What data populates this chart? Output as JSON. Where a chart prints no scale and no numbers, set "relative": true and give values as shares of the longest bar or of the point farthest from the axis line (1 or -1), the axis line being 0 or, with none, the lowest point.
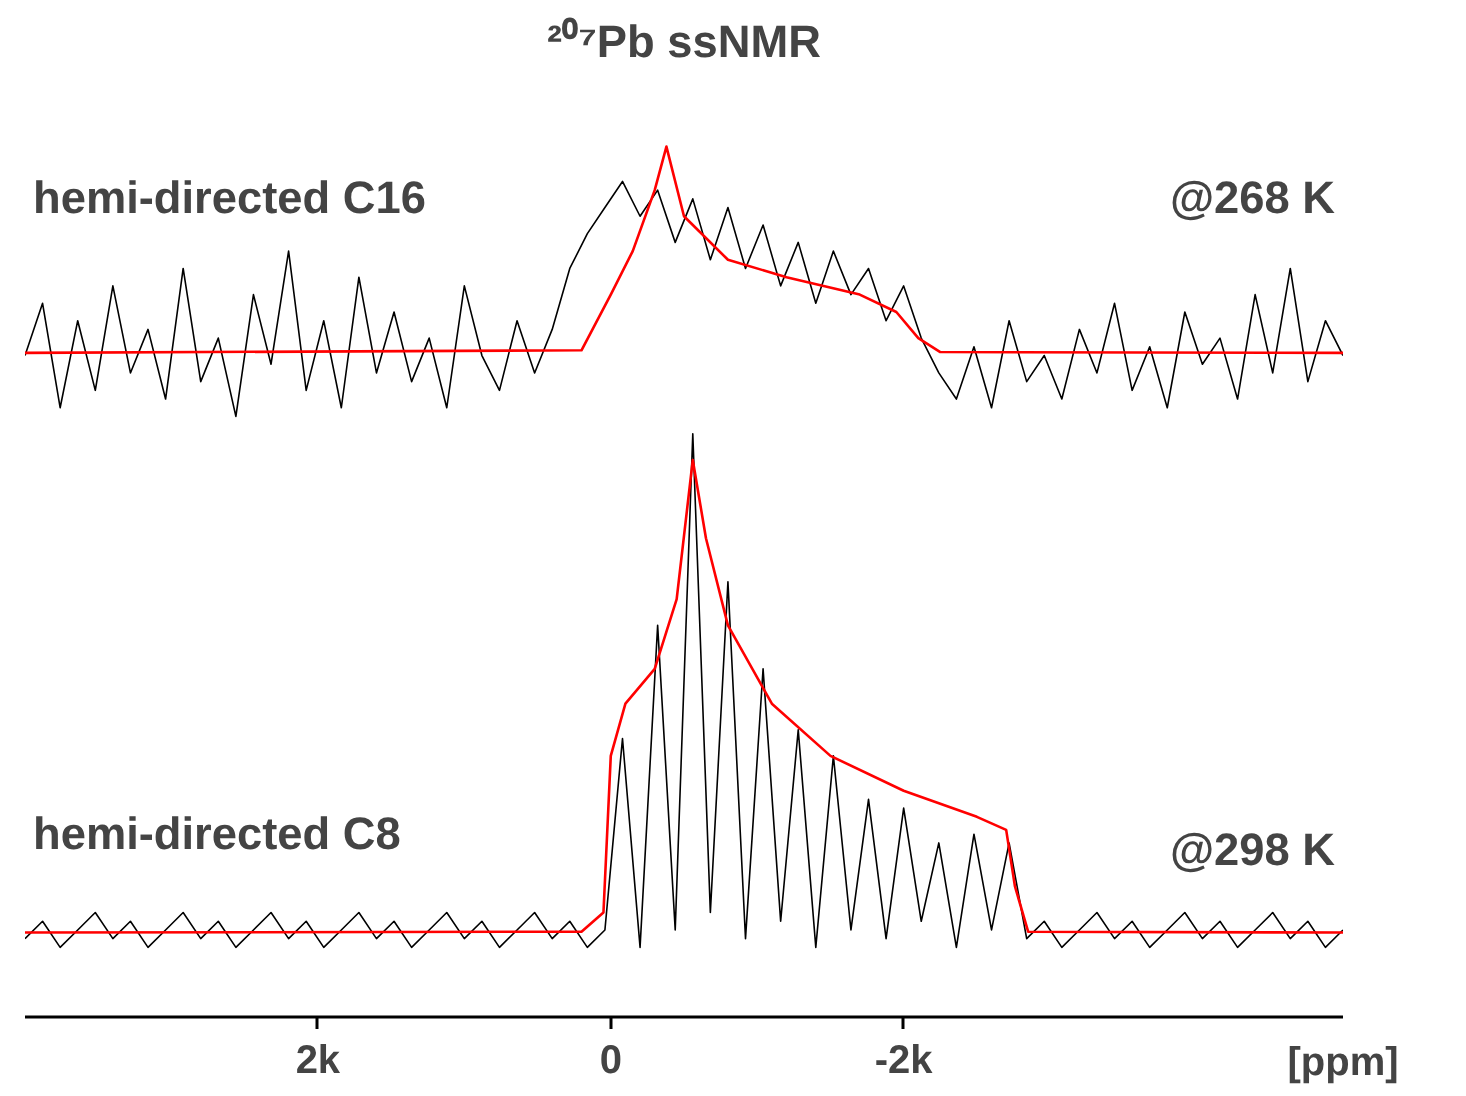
{
  "chart_data": {
    "type": "line",
    "title": "²⁰⁷Pb ssNMR",
    "xlabel": "[ppm]",
    "relative": true,
    "grid": false,
    "xlim": [
      4000,
      -5000
    ],
    "xticks": [
      {
        "value": 2000,
        "label": "2k"
      },
      0,
      {
        "value": -2000,
        "label": "-2k"
      }
    ],
    "annotations": [
      "hemi-directed C16",
      "@268 K",
      "hemi-directed C8",
      "@298 K"
    ],
    "series": [
      {
        "color": "#000000",
        "x": [
          4000,
          3880,
          3760,
          3640,
          3520,
          3400,
          3280,
          3160,
          3040,
          2920,
          2800,
          2680,
          2560,
          2440,
          2320,
          2200,
          2080,
          1960,
          1840,
          1720,
          1600,
          1480,
          1360,
          1240,
          1120,
          1000,
          880,
          760,
          640,
          520,
          400,
          280,
          160,
          40,
          -80,
          -200,
          -320,
          -440,
          -560,
          -680,
          -800,
          -920,
          -1040,
          -1160,
          -1280,
          -1400,
          -1520,
          -1640,
          -1760,
          -1880,
          -2000,
          -2120,
          -2240,
          -2360,
          -2480,
          -2600,
          -2720,
          -2840,
          -2960,
          -3080,
          -3200,
          -3320,
          -3440,
          -3560,
          -3680,
          -3800,
          -3920,
          -4040,
          -4160,
          -4280,
          -4400,
          -4520,
          -4640,
          -4760,
          -4880,
          -5000
        ],
        "values": [
          0.76,
          0.82,
          0.7,
          0.8,
          0.72,
          0.84,
          0.74,
          0.79,
          0.71,
          0.86,
          0.73,
          0.78,
          0.69,
          0.83,
          0.75,
          0.88,
          0.72,
          0.8,
          0.7,
          0.85,
          0.74,
          0.81,
          0.73,
          0.78,
          0.7,
          0.84,
          0.76,
          0.72,
          0.8,
          0.74,
          0.79,
          0.86,
          0.9,
          0.93,
          0.96,
          0.92,
          0.95,
          0.89,
          0.94,
          0.87,
          0.93,
          0.86,
          0.91,
          0.84,
          0.89,
          0.82,
          0.88,
          0.83,
          0.86,
          0.8,
          0.84,
          0.78,
          0.74,
          0.71,
          0.77,
          0.7,
          0.8,
          0.73,
          0.76,
          0.71,
          0.79,
          0.74,
          0.82,
          0.72,
          0.77,
          0.7,
          0.81,
          0.75,
          0.78,
          0.71,
          0.83,
          0.74,
          0.86,
          0.73,
          0.8,
          0.76
        ]
      },
      {
        "color": "#ff0000",
        "x": [
          4000,
          200,
          0,
          -150,
          -300,
          -380,
          -500,
          -800,
          -1200,
          -1700,
          -1950,
          -2100,
          -2250,
          -5000
        ],
        "values": [
          0.763,
          0.766,
          0.83,
          0.88,
          0.95,
          1.0,
          0.92,
          0.87,
          0.85,
          0.83,
          0.81,
          0.78,
          0.764,
          0.763
        ]
      },
      {
        "color": "#000000",
        "x": [
          4000,
          3880,
          3760,
          3640,
          3520,
          3400,
          3280,
          3160,
          3040,
          2920,
          2800,
          2680,
          2560,
          2440,
          2320,
          2200,
          2080,
          1960,
          1840,
          1720,
          1600,
          1480,
          1360,
          1240,
          1120,
          1000,
          880,
          760,
          640,
          520,
          400,
          280,
          160,
          40,
          -80,
          -200,
          -320,
          -440,
          -560,
          -680,
          -800,
          -920,
          -1040,
          -1160,
          -1280,
          -1400,
          -1520,
          -1640,
          -1760,
          -1880,
          -2000,
          -2120,
          -2240,
          -2360,
          -2480,
          -2600,
          -2720,
          -2840,
          -2960,
          -3080,
          -3200,
          -3320,
          -3440,
          -3560,
          -3680,
          -3800,
          -3920,
          -4040,
          -4160,
          -4280,
          -4400,
          -4520,
          -4640,
          -4760,
          -4880,
          -5000
        ],
        "values": [
          0.09,
          0.11,
          0.08,
          0.1,
          0.12,
          0.09,
          0.11,
          0.08,
          0.1,
          0.12,
          0.09,
          0.11,
          0.08,
          0.1,
          0.12,
          0.09,
          0.11,
          0.08,
          0.1,
          0.12,
          0.09,
          0.11,
          0.08,
          0.1,
          0.12,
          0.09,
          0.11,
          0.08,
          0.1,
          0.12,
          0.09,
          0.11,
          0.08,
          0.1,
          0.32,
          0.08,
          0.45,
          0.1,
          0.67,
          0.12,
          0.5,
          0.09,
          0.4,
          0.11,
          0.33,
          0.08,
          0.3,
          0.1,
          0.25,
          0.09,
          0.24,
          0.11,
          0.2,
          0.08,
          0.21,
          0.1,
          0.2,
          0.09,
          0.11,
          0.08,
          0.1,
          0.12,
          0.09,
          0.11,
          0.08,
          0.1,
          0.12,
          0.09,
          0.11,
          0.08,
          0.1,
          0.12,
          0.09,
          0.11,
          0.08,
          0.1
        ]
      },
      {
        "color": "#ff0000",
        "x": [
          4000,
          200,
          50,
          0,
          -100,
          -300,
          -450,
          -560,
          -650,
          -800,
          -1100,
          -1500,
          -2000,
          -2500,
          -2700,
          -2760,
          -2850,
          -5000
        ],
        "values": [
          0.097,
          0.098,
          0.12,
          0.3,
          0.36,
          0.4,
          0.48,
          0.64,
          0.55,
          0.45,
          0.36,
          0.3,
          0.26,
          0.23,
          0.215,
          0.15,
          0.098,
          0.097
        ]
      }
    ]
  }
}
